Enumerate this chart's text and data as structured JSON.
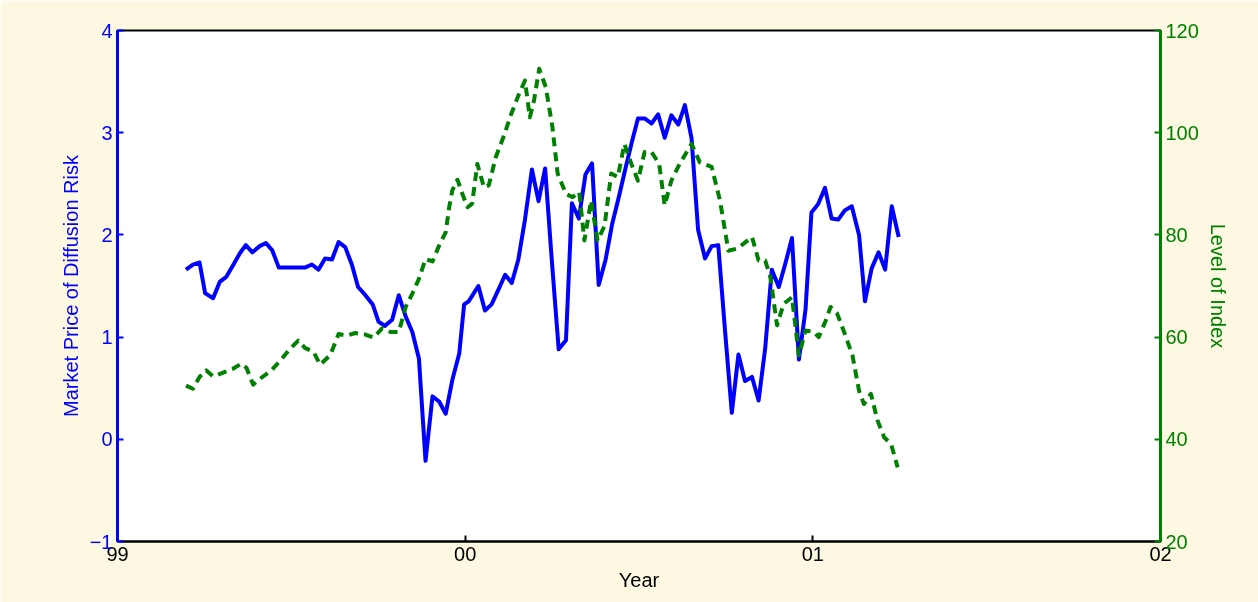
{
  "chart_data": {
    "type": "line",
    "xlabel": "Year",
    "ylabel": "Market Price of Diffusion Risk",
    "y2label": "Level of Index",
    "xlim": [
      1999,
      2002
    ],
    "xticks": [
      {
        "value": 1999,
        "label": "99"
      },
      {
        "value": 2000,
        "label": "00"
      },
      {
        "value": 2001,
        "label": "01"
      },
      {
        "value": 2002,
        "label": "02"
      }
    ],
    "ylim": [
      -1,
      4
    ],
    "yticks": [
      -1,
      0,
      1,
      2,
      3,
      4
    ],
    "y2lim": [
      20,
      120
    ],
    "y2ticks": [
      20,
      40,
      60,
      80,
      100,
      120
    ],
    "grid": false,
    "series": [
      {
        "color": "#0000ff",
        "line_style": "solid",
        "x": [
          1999.197,
          1999.217,
          1999.236,
          1999.252,
          1999.275,
          1999.294,
          1999.313,
          1999.332,
          1999.352,
          1999.369,
          1999.388,
          1999.409,
          1999.427,
          1999.445,
          1999.464,
          1999.52,
          1999.539,
          1999.559,
          1999.578,
          1999.597,
          1999.617,
          1999.636,
          1999.655,
          1999.674,
          1999.692,
          1999.713,
          1999.734,
          1999.751,
          1999.769,
          1999.79,
          1999.809,
          1999.829,
          1999.848,
          1999.867,
          1999.886,
          1999.906,
          1999.925,
          1999.944,
          1999.963,
          1999.983,
          1999.997,
          2000.01,
          2000.038,
          2000.057,
          2000.076,
          2000.095,
          2000.115,
          2000.134,
          2000.153,
          2000.172,
          2000.192,
          2000.211,
          2000.23,
          2000.249,
          2000.269,
          2000.29,
          2000.307,
          2000.327,
          2000.346,
          2000.365,
          2000.384,
          2000.404,
          2000.423,
          2000.442,
          2000.461,
          2000.481,
          2000.497,
          2000.516,
          2000.536,
          2000.555,
          2000.574,
          2000.593,
          2000.613,
          2000.632,
          2000.651,
          2000.67,
          2000.69,
          2000.709,
          2000.728,
          2000.748,
          2000.767,
          2000.786,
          2000.805,
          2000.825,
          2000.844,
          2000.863,
          2000.882,
          2000.902,
          2000.921,
          2000.94,
          2000.96,
          2000.979,
          2000.996,
          2001.015,
          2001.035,
          2001.054,
          2001.073,
          2001.092,
          2001.112,
          2001.133,
          2001.15,
          2001.169,
          2001.189,
          2001.208,
          2001.227,
          2001.247
        ],
        "values": [
          1.66,
          1.71,
          1.73,
          1.43,
          1.38,
          1.54,
          1.59,
          1.7,
          1.82,
          1.9,
          1.83,
          1.89,
          1.92,
          1.85,
          1.68,
          1.68,
          1.68,
          1.71,
          1.66,
          1.77,
          1.76,
          1.93,
          1.88,
          1.71,
          1.49,
          1.41,
          1.32,
          1.15,
          1.11,
          1.17,
          1.41,
          1.2,
          1.05,
          0.79,
          -0.21,
          0.42,
          0.37,
          0.25,
          0.58,
          0.84,
          1.32,
          1.35,
          1.5,
          1.26,
          1.32,
          1.46,
          1.61,
          1.53,
          1.76,
          2.15,
          2.64,
          2.33,
          2.65,
          1.76,
          0.88,
          0.97,
          2.31,
          2.16,
          2.59,
          2.7,
          1.51,
          1.76,
          2.11,
          2.37,
          2.65,
          2.93,
          3.14,
          3.14,
          3.09,
          3.18,
          2.95,
          3.17,
          3.08,
          3.27,
          2.95,
          2.05,
          1.77,
          1.89,
          1.9,
          1.04,
          0.26,
          0.83,
          0.57,
          0.61,
          0.38,
          0.89,
          1.66,
          1.49,
          1.72,
          1.97,
          0.78,
          1.27,
          2.22,
          2.3,
          2.46,
          2.16,
          2.15,
          2.24,
          2.28,
          2.0,
          1.35,
          1.67,
          1.83,
          1.66,
          2.28,
          1.98
        ]
      },
      {
        "color": "#008000",
        "line_style": "dashed",
        "axis": "y2",
        "x": [
          1999.197,
          1999.217,
          1999.236,
          1999.255,
          1999.275,
          1999.313,
          1999.332,
          1999.356,
          1999.371,
          1999.39,
          1999.409,
          1999.443,
          1999.472,
          1999.496,
          1999.52,
          1999.539,
          1999.564,
          1999.583,
          1999.612,
          1999.636,
          1999.66,
          1999.684,
          1999.713,
          1999.737,
          1999.761,
          1999.785,
          1999.809,
          1999.829,
          1999.848,
          1999.867,
          1999.886,
          1999.906,
          1999.925,
          1999.944,
          1999.954,
          1999.963,
          1999.978,
          1999.992,
          2000.007,
          2000.02,
          2000.035,
          2000.054,
          2000.068,
          2000.088,
          2000.112,
          2000.131,
          2000.155,
          2000.172,
          2000.186,
          2000.198,
          2000.213,
          2000.232,
          2000.251,
          2000.266,
          2000.29,
          2000.309,
          2000.328,
          2000.343,
          2000.362,
          2000.381,
          2000.401,
          2000.42,
          2000.439,
          2000.458,
          2000.478,
          2000.497,
          2000.516,
          2000.536,
          2000.558,
          2000.574,
          2000.593,
          2000.617,
          2000.651,
          2000.675,
          2000.709,
          2000.733,
          2000.757,
          2000.781,
          2000.801,
          2000.825,
          2000.844,
          2000.863,
          2000.878,
          2000.897,
          2000.916,
          2000.94,
          2000.96,
          2000.979,
          2001.003,
          2001.017,
          2001.037,
          2001.051,
          2001.07,
          2001.09,
          2001.114,
          2001.133,
          2001.147,
          2001.167,
          2001.186,
          2001.205,
          2001.225,
          2001.244
        ],
        "values": [
          50.5,
          49.9,
          52.2,
          53.5,
          52.3,
          53.3,
          53.8,
          54.8,
          54.0,
          50.7,
          51.8,
          53.5,
          55.7,
          57.7,
          59.3,
          57.9,
          57.1,
          54.6,
          56.5,
          60.6,
          60.3,
          60.8,
          60.5,
          59.9,
          61.7,
          61.0,
          61.0,
          65.9,
          68.5,
          71.4,
          75.3,
          74.8,
          77.9,
          80.5,
          85.4,
          88.7,
          90.8,
          88.0,
          85.4,
          86.1,
          93.9,
          89.3,
          89.7,
          95.2,
          99.5,
          103.4,
          107.6,
          110.2,
          103.0,
          106.3,
          112.5,
          108.9,
          101.1,
          92.0,
          88.0,
          87.4,
          88.4,
          78.9,
          86.7,
          78.9,
          81.8,
          92.0,
          91.3,
          97.8,
          93.9,
          90.6,
          96.2,
          96.2,
          93.9,
          85.8,
          90.6,
          93.9,
          97.8,
          94.2,
          93.3,
          86.7,
          76.9,
          77.3,
          78.3,
          79.6,
          75.0,
          75.0,
          71.7,
          62.3,
          66.5,
          67.8,
          56.4,
          61.3,
          61.0,
          60.0,
          63.2,
          65.9,
          64.6,
          61.0,
          56.4,
          49.5,
          46.9,
          48.9,
          43.7,
          40.4,
          39.1,
          34.5
        ]
      }
    ]
  }
}
